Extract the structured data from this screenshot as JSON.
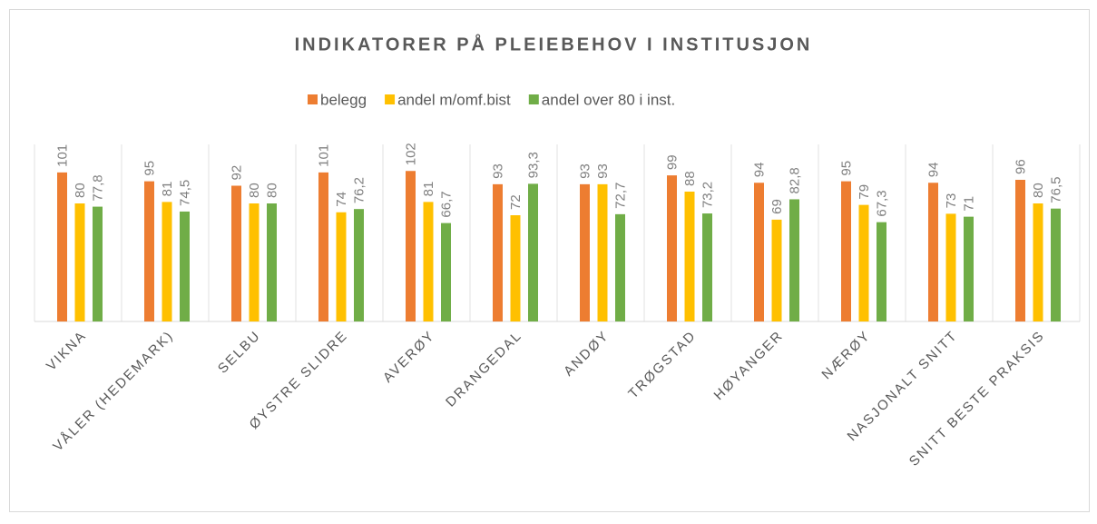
{
  "chart_data": {
    "type": "bar",
    "title": "INDIKATORER PÅ PLEIEBEHOV I INSTITUSJON",
    "categories": [
      "VIKNA",
      "VÅLER (HEDEMARK)",
      "SELBU",
      "ØYSTRE SLIDRE",
      "AVERØY",
      "DRANGEDAL",
      "ANDØY",
      "TRØGSTAD",
      "HØYANGER",
      "NÆRØY",
      "NASJONALT SNITT",
      "SNITT BESTE PRAKSIS"
    ],
    "series": [
      {
        "name": "belegg",
        "color": "#ed7d31",
        "values": [
          101,
          95,
          92,
          101,
          102,
          93,
          93,
          99,
          94,
          95,
          94,
          96
        ],
        "value_labels": [
          "101",
          "95",
          "92",
          "101",
          "102",
          "93",
          "93",
          "99",
          "94",
          "95",
          "94",
          "96"
        ]
      },
      {
        "name": "andel m/omf.bist",
        "color": "#ffc000",
        "values": [
          80,
          81,
          80,
          74,
          81,
          72,
          93,
          88,
          69,
          79,
          73,
          80
        ],
        "value_labels": [
          "80",
          "81",
          "80",
          "74",
          "81",
          "72",
          "93",
          "88",
          "69",
          "79",
          "73",
          "80"
        ]
      },
      {
        "name": "andel over 80 i inst.",
        "color": "#70ad47",
        "values": [
          77.8,
          74.5,
          80,
          76.2,
          66.7,
          93.3,
          72.7,
          73.2,
          82.8,
          67.3,
          71,
          76.5
        ],
        "value_labels": [
          "77,8",
          "74,5",
          "80",
          "76,2",
          "66,7",
          "93,3",
          "72,7",
          "73,2",
          "82,8",
          "67,3",
          "71",
          "76,5"
        ]
      }
    ],
    "ylim": [
      0,
      120
    ],
    "legend": "top"
  }
}
